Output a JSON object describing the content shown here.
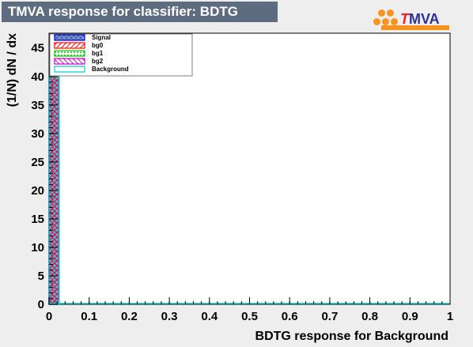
{
  "title": "TMVA response for classifier: BDTG",
  "logo": {
    "t": "T",
    "rest": "MVA"
  },
  "chart_data": {
    "type": "bar",
    "xlabel": "BDTG response for Background",
    "ylabel": "(1/N) dN / dx",
    "xlim": [
      0,
      1
    ],
    "ylim": [
      0,
      47.6
    ],
    "x_ticks": [
      "0",
      "0.1",
      "0.2",
      "0.3",
      "0.4",
      "0.5",
      "0.6",
      "0.7",
      "0.8",
      "0.9",
      "1"
    ],
    "y_ticks": [
      "0",
      "5",
      "10",
      "15",
      "20",
      "25",
      "30",
      "35",
      "40",
      "45"
    ],
    "bin_width": 0.025,
    "legend_position": "top-left",
    "series": [
      {
        "name": "Signal",
        "color": "#0000cc",
        "fill": "#7d99d1",
        "pattern": "solid",
        "bins": [
          {
            "x": 0.0125,
            "value": 40
          }
        ]
      },
      {
        "name": "bg0",
        "color": "#ff0000",
        "fill": "#ff0000",
        "pattern": "hatch",
        "bins": [
          {
            "x": 0.0125,
            "value": 40
          }
        ]
      },
      {
        "name": "bg1",
        "color": "#00cc00",
        "fill": "#00cc00",
        "pattern": "dots",
        "bins": [
          {
            "x": 0.0125,
            "value": 40
          }
        ]
      },
      {
        "name": "bg2",
        "color": "#cc00cc",
        "fill": "#cc00cc",
        "pattern": "hatch-back",
        "bins": [
          {
            "x": 0.0125,
            "value": 40
          }
        ]
      },
      {
        "name": "Background",
        "color": "#00cccc",
        "fill": "#00cccc",
        "pattern": "outline",
        "bins": [
          {
            "x": 0.0125,
            "value": 40
          }
        ]
      }
    ]
  }
}
